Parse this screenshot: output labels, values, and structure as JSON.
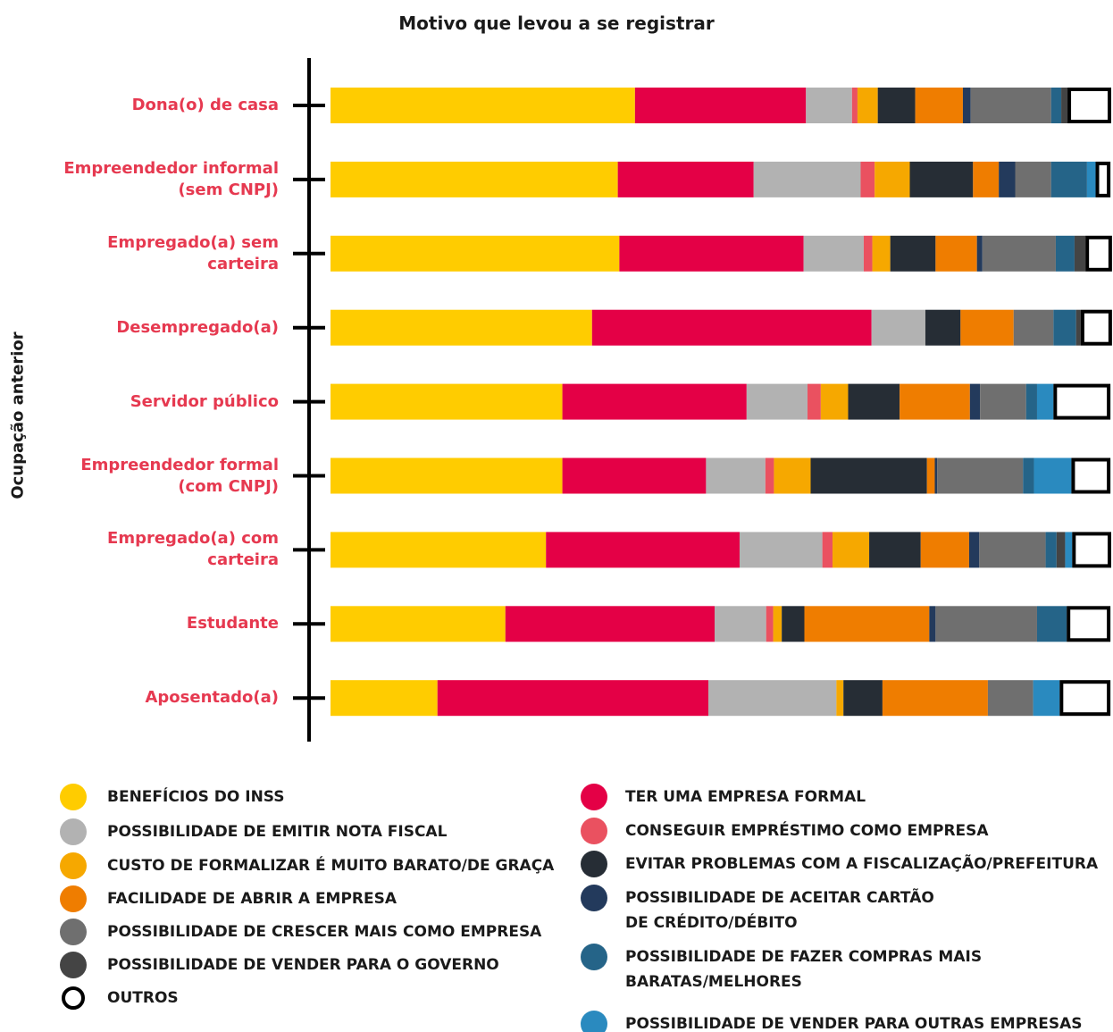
{
  "chart_data": {
    "type": "stacked_barh",
    "title": "Motivo que levou a se registrar",
    "y_label": "Ocupação anterior",
    "xlim": [
      0,
      100
    ],
    "categories": [
      "Dona(o) de casa",
      "Empreendedor informal\n(sem CNPJ)",
      "Empregado(a) sem\ncarteira",
      "Desempregado(a)",
      "Servidor público",
      "Empreendedor formal\n(com CNPJ)",
      "Empregado(a) com\ncarteira",
      "Estudante",
      "Aposentado(a)"
    ],
    "series": [
      {
        "name": "BENEFÍCIOS DO INSS",
        "color": "#ffcc00",
        "values": [
          39.0,
          36.8,
          37.0,
          33.5,
          29.7,
          29.7,
          27.6,
          22.4,
          13.7
        ]
      },
      {
        "name": "TER UMA EMPRESA FORMAL",
        "color": "#e40046",
        "values": [
          21.9,
          17.4,
          23.6,
          35.8,
          23.6,
          18.4,
          24.8,
          26.8,
          34.7
        ]
      },
      {
        "name": "POSSIBILIDADE DE EMITIR NOTA FISCAL",
        "color": "#b2b2b2",
        "values": [
          5.9,
          13.7,
          7.7,
          6.9,
          7.8,
          7.6,
          10.6,
          6.6,
          16.4
        ]
      },
      {
        "name": "CONSEGUIR EMPRÉSTIMO COMO EMPRESA",
        "color": "#ea5160",
        "values": [
          0.7,
          1.8,
          1.1,
          0,
          1.7,
          1.1,
          1.3,
          0.9,
          0
        ]
      },
      {
        "name": "CUSTO DE FORMALIZAR É MUITO BARATO/DE GRAÇA",
        "color": "#f6a800",
        "values": [
          2.6,
          4.5,
          2.3,
          0,
          3.5,
          4.7,
          4.7,
          1.1,
          0.9
        ]
      },
      {
        "name": "EVITAR PROBLEMAS COM A FISCALIZAÇÃO/PREFEITURA",
        "color": "#262d35",
        "values": [
          4.8,
          8.1,
          5.8,
          4.5,
          6.6,
          14.9,
          6.6,
          2.9,
          5.0
        ]
      },
      {
        "name": "FACILIDADE DE ABRIR A EMPRESA",
        "color": "#ef7d00",
        "values": [
          6.1,
          3.3,
          5.3,
          6.8,
          9.0,
          1.0,
          6.2,
          16.0,
          13.5
        ]
      },
      {
        "name": "POSSIBILIDADE DE ACEITAR CARTÃO\nDE CRÉDITO/DÉBITO",
        "color": "#233a5c",
        "values": [
          1.0,
          2.1,
          0.7,
          0,
          1.3,
          0.3,
          1.3,
          0.8,
          0
        ]
      },
      {
        "name": "POSSIBILIDADE DE CRESCER MAIS COMO EMPRESA",
        "color": "#6f6f6f",
        "values": [
          10.3,
          4.6,
          9.4,
          5.1,
          5.9,
          11.0,
          8.5,
          13.0,
          5.8
        ]
      },
      {
        "name": "POSSIBILIDADE DE FAZER COMPRAS MAIS\nBARATAS/MELHORES",
        "color": "#256488",
        "values": [
          1.3,
          4.6,
          2.4,
          2.9,
          1.4,
          1.4,
          1.4,
          3.8,
          0
        ]
      },
      {
        "name": "POSSIBILIDADE DE VENDER PARA O GOVERNO",
        "color": "#444444",
        "values": [
          0.8,
          0,
          1.4,
          0.6,
          0,
          0,
          1.1,
          0,
          0
        ]
      },
      {
        "name": "POSSIBILIDADE DE VENDER PARA OUTRAS EMPRESAS",
        "color": "#2a8abf",
        "values": [
          0,
          1.1,
          0,
          0,
          2.1,
          4.8,
          0.9,
          0,
          3.4
        ]
      },
      {
        "name": "OUTROS",
        "color": "#ffffff",
        "values": [
          5.6,
          1.9,
          3.4,
          4.0,
          7.3,
          5.0,
          5.0,
          5.6,
          6.5
        ]
      }
    ]
  }
}
